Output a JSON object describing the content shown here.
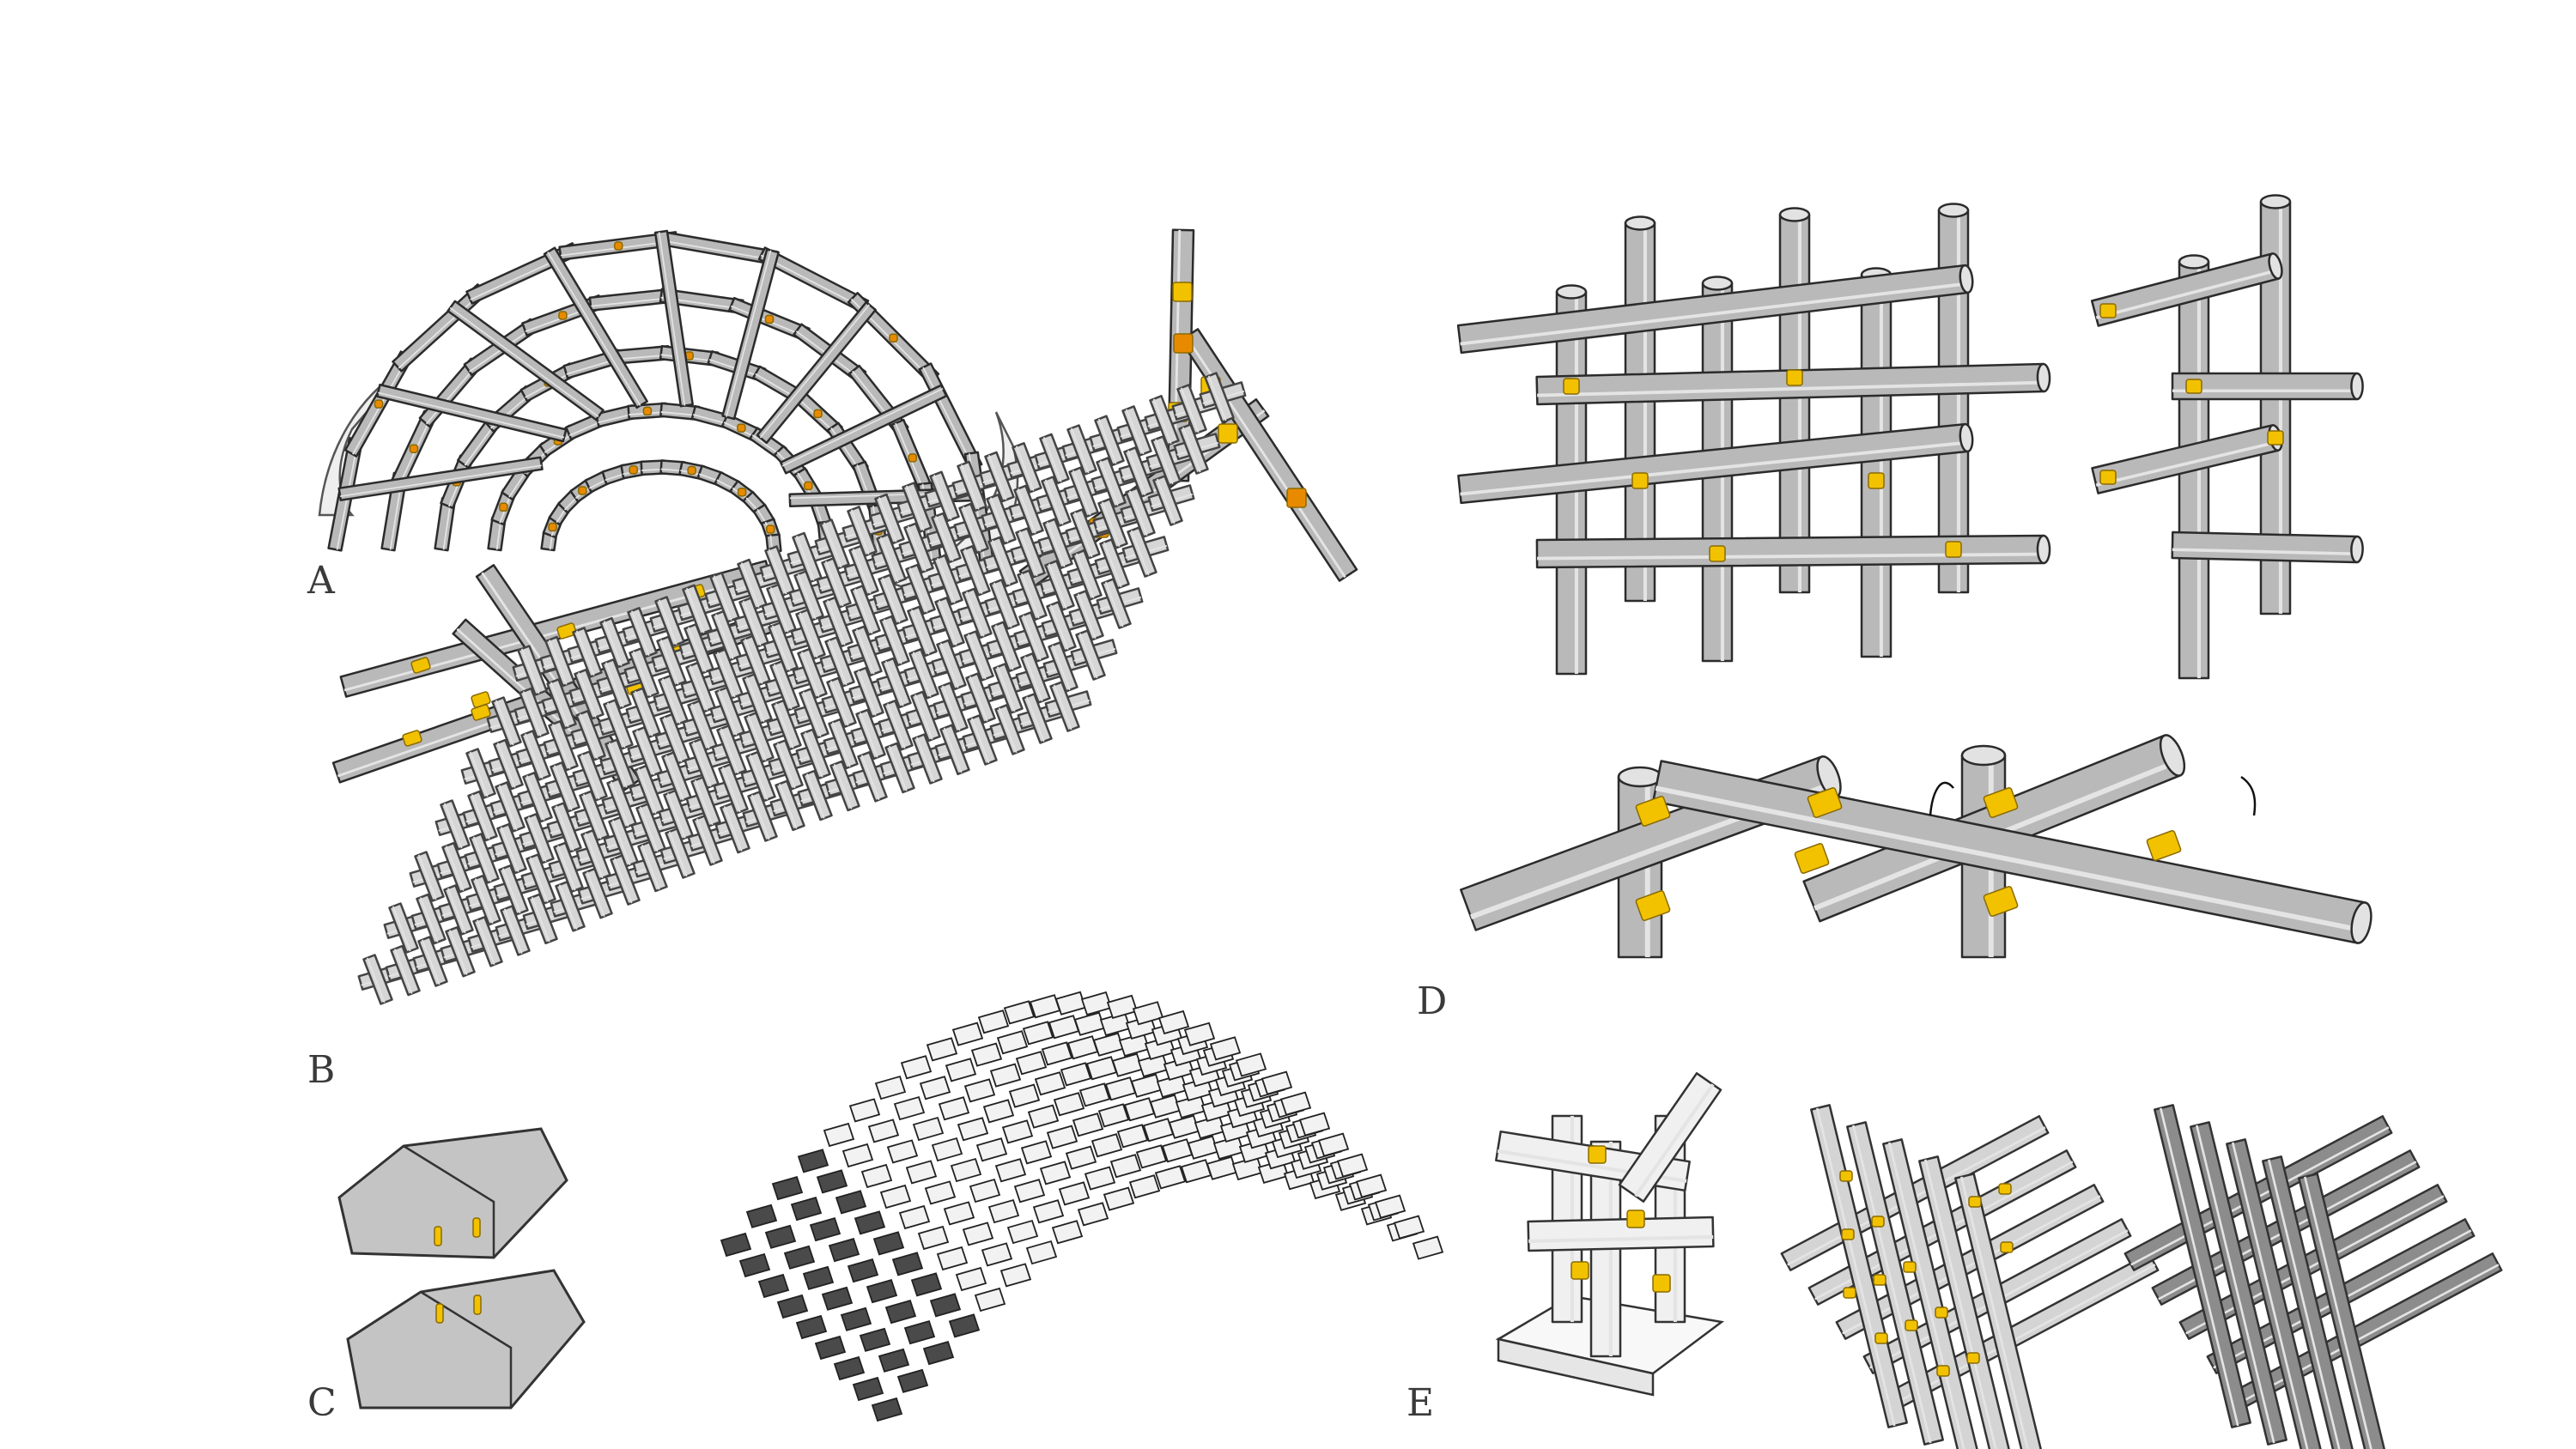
{
  "panels": [
    {
      "label": "A"
    },
    {
      "label": "B"
    },
    {
      "label": "C"
    },
    {
      "label": "D"
    },
    {
      "label": "E"
    }
  ],
  "colors": {
    "rod_fill": "#b9b9b9",
    "rod_light": "#d6d6d6",
    "rod_stroke": "#2b2b2b",
    "joint_yellow": "#f2c200",
    "joint_orange": "#e88a00",
    "tile_dark": "#4a4a4a",
    "tile_light": "#f2f2f2",
    "base_white": "#f8f8f8"
  }
}
